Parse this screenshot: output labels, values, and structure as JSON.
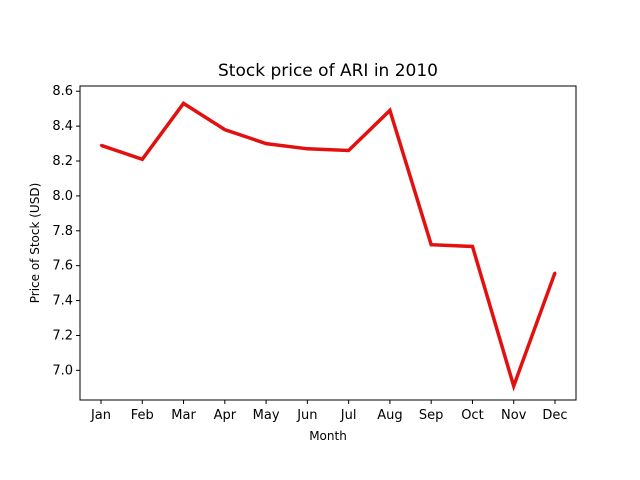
{
  "chart_data": {
    "type": "line",
    "title": "Stock price of ARI in 2010",
    "xlabel": "Month",
    "ylabel": "Price of Stock (USD)",
    "categories": [
      "Jan",
      "Feb",
      "Mar",
      "Apr",
      "May",
      "Jun",
      "Jul",
      "Aug",
      "Sep",
      "Oct",
      "Nov",
      "Dec"
    ],
    "series": [
      {
        "values": [
          8.29,
          8.21,
          8.53,
          8.38,
          8.3,
          8.27,
          8.26,
          8.49,
          7.72,
          7.71,
          6.91,
          7.56
        ],
        "color": "#e31010"
      }
    ],
    "ylim": [
      6.83,
      8.63
    ],
    "yticks": [
      "7.0",
      "7.2",
      "7.4",
      "7.6",
      "7.8",
      "8.0",
      "8.2",
      "8.4",
      "8.6"
    ],
    "grid": false,
    "legend": "none"
  }
}
